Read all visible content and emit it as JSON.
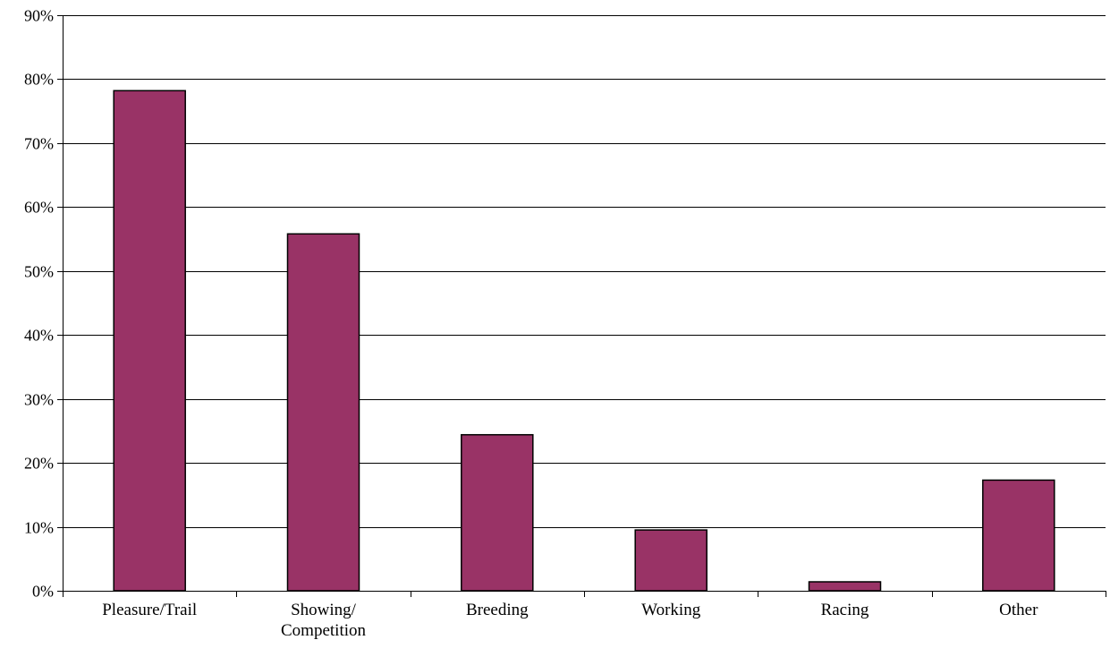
{
  "chart_data": {
    "type": "bar",
    "title": "",
    "xlabel": "",
    "ylabel": "",
    "categories": [
      [
        "Pleasure/Trail"
      ],
      [
        "Showing/",
        "Competition"
      ],
      [
        "Breeding"
      ],
      [
        "Working"
      ],
      [
        "Racing"
      ],
      [
        "Other"
      ]
    ],
    "values": [
      0.782,
      0.558,
      0.244,
      0.095,
      0.014,
      0.173
    ],
    "ylim": [
      0,
      0.9
    ],
    "yticks": [
      0,
      0.1,
      0.2,
      0.3,
      0.4,
      0.5,
      0.6,
      0.7,
      0.8,
      0.9
    ],
    "ytick_labels": [
      "0%",
      "10%",
      "20%",
      "30%",
      "40%",
      "50%",
      "60%",
      "70%",
      "80%",
      "90%"
    ],
    "grid": true,
    "legend": "none",
    "colors": {
      "bar": "#993366",
      "bar_edge": "#000000",
      "grid": "#000000",
      "axis": "#000000"
    }
  }
}
